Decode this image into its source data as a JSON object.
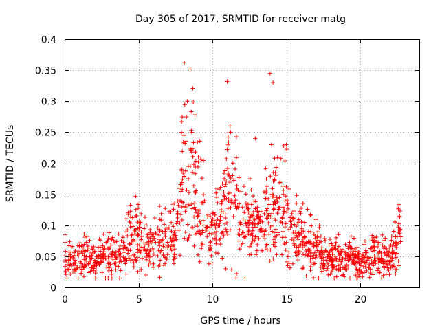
{
  "chart_data": {
    "type": "scatter",
    "title": "Day 305 of 2017, SRMTID for receiver matg",
    "xlabel": "GPS time / hours",
    "ylabel": "SRMTID / TECUs",
    "xlim": [
      0,
      24
    ],
    "ylim": [
      0,
      0.4
    ],
    "grid": true,
    "marker": "+",
    "colors": {
      "series": "#ff0000",
      "grid": "#a0a0a0",
      "axis": "#000000"
    },
    "x_ticks": [
      "0",
      "5",
      "10",
      "15",
      "20"
    ],
    "y_ticks": [
      "0",
      "0.05",
      "0.1",
      "0.15",
      "0.2",
      "0.25",
      "0.3",
      "0.35",
      "0.4"
    ],
    "profile": {
      "description": "typical SRMTID level per hour band, read from the plot (data units)",
      "x": [
        0,
        1,
        2,
        3,
        4,
        4.3,
        5,
        5.5,
        6,
        6.5,
        7,
        7.5,
        7.8,
        8,
        8.3,
        8.7,
        9,
        9.5,
        10,
        10.5,
        11,
        11.5,
        12,
        12.5,
        13,
        13.5,
        14,
        14.5,
        15,
        15.3,
        16,
        17,
        18,
        19,
        20,
        21,
        22,
        22.8
      ],
      "y": [
        0.045,
        0.045,
        0.045,
        0.048,
        0.05,
        0.085,
        0.078,
        0.06,
        0.065,
        0.07,
        0.07,
        0.075,
        0.12,
        0.2,
        0.2,
        0.17,
        0.14,
        0.11,
        0.08,
        0.09,
        0.14,
        0.15,
        0.1,
        0.1,
        0.1,
        0.11,
        0.13,
        0.13,
        0.12,
        0.09,
        0.075,
        0.06,
        0.05,
        0.045,
        0.045,
        0.05,
        0.045,
        0.08
      ]
    },
    "features": [
      {
        "label": "peak",
        "x": 8.1,
        "y": 0.362
      },
      {
        "label": "peak",
        "x": 11.0,
        "y": 0.332
      },
      {
        "label": "peak",
        "x": 13.9,
        "y": 0.345
      },
      {
        "label": "peak",
        "x": 14.1,
        "y": 0.33
      },
      {
        "label": "peak",
        "x": 8.3,
        "y": 0.3
      },
      {
        "label": "peak",
        "x": 12.9,
        "y": 0.24
      },
      {
        "label": "peak",
        "x": 15.0,
        "y": 0.23
      },
      {
        "label": "peak",
        "x": 22.7,
        "y": 0.123
      },
      {
        "label": "peak",
        "x": 4.3,
        "y": 0.12
      },
      {
        "label": "dip",
        "x": 5.5,
        "y": 0.02
      },
      {
        "label": "dip",
        "x": 10.9,
        "y": 0.03
      }
    ]
  }
}
